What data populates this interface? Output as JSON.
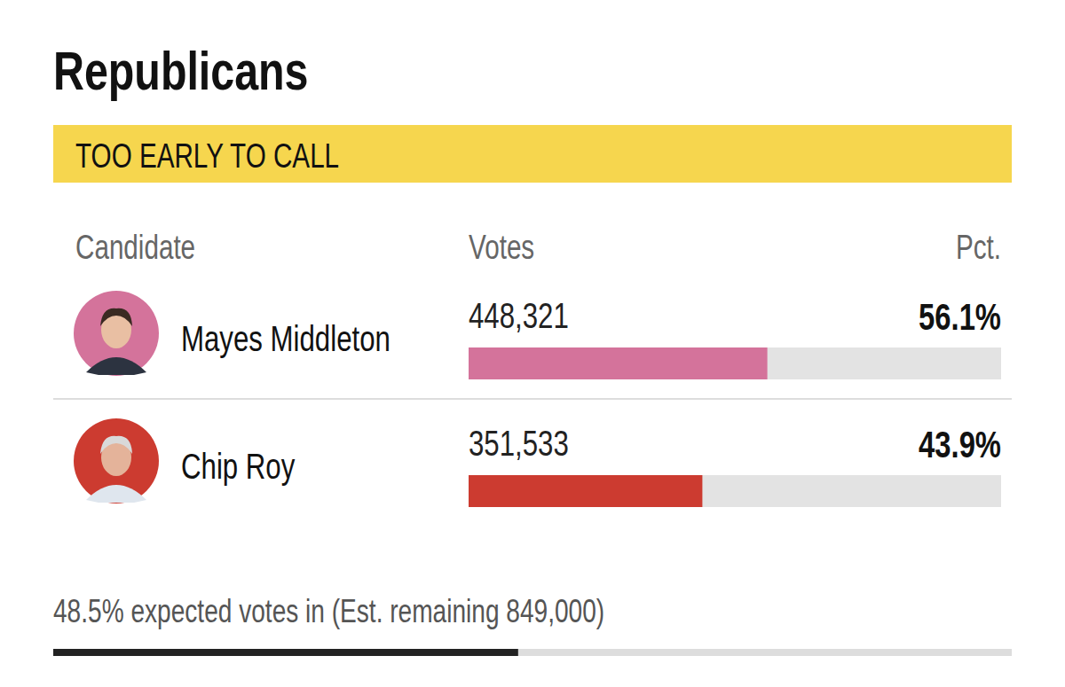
{
  "chart_data": {
    "type": "bar",
    "orientation": "horizontal",
    "title": "Republicans",
    "status": "TOO EARLY TO CALL",
    "column_headers": [
      "Candidate",
      "Votes",
      "Pct."
    ],
    "categories": [
      "Mayes Middleton",
      "Chip Roy"
    ],
    "votes": [
      "448,321",
      "351,533"
    ],
    "values": [
      56.1,
      43.9
    ],
    "value_labels": [
      "56.1%",
      "43.9%"
    ],
    "colors": [
      "#d4739b",
      "#cc3b30"
    ],
    "xlim": [
      0,
      100
    ],
    "tick_labels": false,
    "data_labels": true,
    "progress": 48.5,
    "footer": "48.5% expected votes in (Est. remaining 849,000)"
  }
}
